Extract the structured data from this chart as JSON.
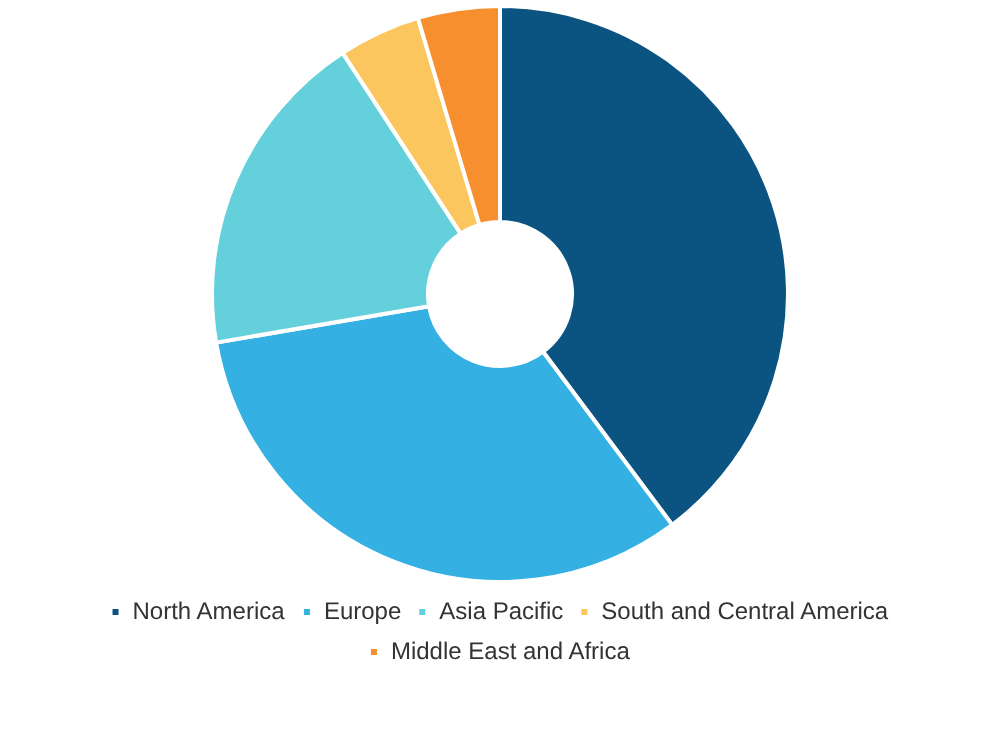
{
  "chart_data": {
    "type": "donut",
    "categories": [
      "North America",
      "Europe",
      "Asia Pacific",
      "South and Central America",
      "Middle East and Africa"
    ],
    "values": [
      39.8,
      32.5,
      18.5,
      4.6,
      4.6
    ],
    "colors": [
      "#0b5380",
      "#35b0e3",
      "#63d0dc",
      "#fcc65e",
      "#f78f2e"
    ],
    "legend": "bottom"
  }
}
